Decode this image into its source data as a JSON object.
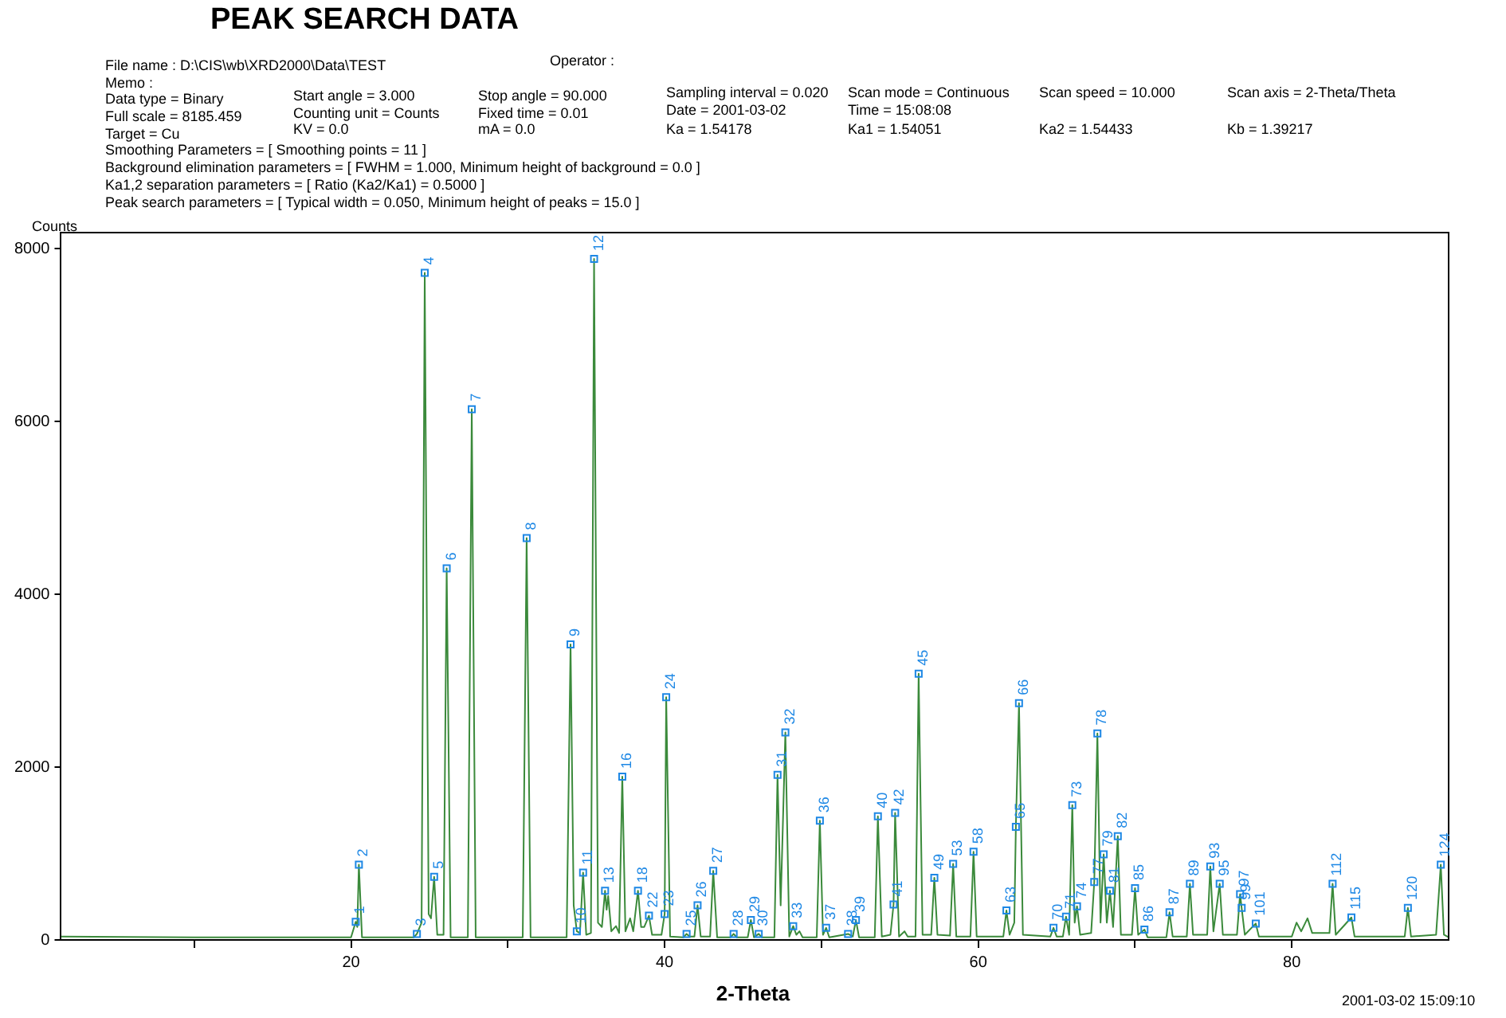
{
  "chart_data": {
    "type": "line",
    "title": "PEAK SEARCH DATA",
    "xlabel": "2-Theta",
    "ylabel": "Counts",
    "xlim": [
      1.5,
      90
    ],
    "xticks": [
      {
        "value": 10,
        "label": null
      },
      20,
      {
        "value": 30,
        "label": null
      },
      40,
      {
        "value": 50,
        "label": null
      },
      60,
      {
        "value": 70,
        "label": null
      },
      80
    ],
    "ylim": [
      0,
      8185
    ],
    "yticks": [
      0,
      2000,
      4000,
      6000,
      8000
    ],
    "grid": false,
    "legend": false,
    "marker": "none",
    "line_style": "solid",
    "series": [
      {
        "color": "#3b8a3b",
        "x": [
          1.5,
          10,
          20.0,
          20.3,
          20.4,
          20.5,
          20.7,
          24.0,
          24.2,
          24.5,
          24.7,
          24.95,
          25.1,
          25.3,
          25.5,
          25.9,
          26.1,
          26.35,
          27.45,
          27.7,
          27.95,
          30.95,
          31.2,
          31.45,
          33.75,
          34.0,
          34.2,
          34.4,
          34.6,
          34.8,
          35.0,
          35.3,
          35.5,
          35.75,
          36.0,
          36.2,
          36.3,
          36.4,
          36.6,
          36.9,
          37.1,
          37.3,
          37.5,
          37.8,
          38.0,
          38.3,
          38.5,
          38.7,
          39.0,
          39.2,
          39.8,
          40.0,
          40.1,
          40.35,
          41.2,
          41.4,
          41.6,
          41.9,
          42.1,
          42.3,
          42.9,
          43.1,
          43.35,
          44.2,
          44.4,
          44.6,
          45.3,
          45.5,
          45.7,
          46.0,
          46.2,
          47.0,
          47.2,
          47.4,
          47.7,
          47.95,
          48.2,
          48.4,
          48.6,
          48.8,
          49.7,
          49.9,
          50.1,
          50.3,
          50.5,
          51.7,
          52.0,
          52.2,
          52.4,
          53.4,
          53.6,
          53.85,
          54.4,
          54.6,
          54.7,
          54.95,
          55.3,
          55.5,
          56.0,
          56.2,
          56.45,
          57.0,
          57.2,
          57.4,
          58.2,
          58.4,
          58.6,
          59.5,
          59.7,
          59.9,
          61.6,
          61.8,
          62.0,
          62.3,
          62.4,
          62.6,
          62.85,
          64.6,
          64.8,
          65.0,
          65.4,
          65.6,
          65.8,
          66.0,
          66.15,
          66.3,
          66.5,
          67.2,
          67.4,
          67.6,
          67.8,
          68.0,
          68.2,
          68.4,
          68.6,
          68.9,
          69.1,
          69.8,
          70.0,
          70.2,
          70.6,
          70.8,
          72.0,
          72.2,
          72.4,
          73.3,
          73.5,
          73.7,
          74.6,
          74.8,
          75.0,
          75.4,
          75.6,
          76.5,
          76.7,
          76.8,
          77.0,
          77.7,
          77.9,
          80.0,
          80.3,
          80.6,
          81.0,
          81.3,
          82.4,
          82.6,
          82.8,
          83.8,
          84.0,
          87.2,
          87.4,
          87.6,
          89.2,
          89.5,
          89.7,
          90
        ],
        "values": [
          40,
          30,
          30,
          210,
          150,
          870,
          30,
          30,
          70,
          200,
          7720,
          300,
          250,
          730,
          60,
          60,
          4300,
          30,
          30,
          6140,
          30,
          30,
          4650,
          30,
          30,
          3420,
          400,
          100,
          80,
          780,
          60,
          80,
          7880,
          200,
          150,
          570,
          350,
          510,
          100,
          160,
          80,
          1890,
          100,
          250,
          100,
          570,
          150,
          150,
          280,
          60,
          60,
          300,
          2810,
          40,
          30,
          70,
          40,
          40,
          400,
          40,
          40,
          800,
          30,
          30,
          70,
          30,
          30,
          230,
          30,
          70,
          30,
          30,
          1910,
          400,
          2400,
          40,
          160,
          60,
          100,
          30,
          30,
          1380,
          60,
          140,
          30,
          70,
          40,
          230,
          30,
          30,
          1430,
          40,
          60,
          410,
          1470,
          40,
          100,
          40,
          40,
          3080,
          60,
          60,
          720,
          60,
          50,
          880,
          40,
          40,
          1020,
          40,
          40,
          340,
          60,
          200,
          1310,
          2740,
          60,
          40,
          140,
          40,
          40,
          270,
          60,
          1560,
          200,
          390,
          60,
          80,
          670,
          2390,
          200,
          990,
          200,
          570,
          150,
          1200,
          60,
          60,
          600,
          60,
          120,
          30,
          30,
          320,
          40,
          40,
          650,
          60,
          60,
          850,
          100,
          650,
          60,
          60,
          530,
          370,
          60,
          190,
          40,
          40,
          200,
          100,
          250,
          80,
          80,
          650,
          60,
          260,
          40,
          40,
          370,
          40,
          60,
          870,
          60,
          30
        ]
      }
    ],
    "annotations": [
      "File name : D:\\CIS\\wb\\XRD2000\\Data\\TEST",
      "Operator :",
      "Memo :",
      "Data type = Binary",
      "Start angle = 3.000",
      "Stop angle = 90.000",
      "Sampling interval = 0.020",
      "Scan mode = Continuous",
      "Scan speed = 10.000",
      "Scan axis = 2-Theta/Theta",
      "Full scale = 8185.459",
      "Counting unit = Counts",
      "Fixed time = 0.01",
      "Date = 2001-03-02",
      "Time = 15:08:08",
      "Target = Cu",
      "KV = 0.0",
      "mA = 0.0",
      "Ka = 1.54178",
      "Ka1 = 1.54051",
      "Ka2 = 1.54433",
      "Kb = 1.39217",
      "Smoothing Parameters = [ Smoothing points = 11 ]",
      "Background elimination parameters = [ FWHM = 1.000,  Minimum height of background = 0.0 ]",
      "Ka1,2 separation parameters = [ Ratio (Ka2/Ka1) = 0.5000 ]",
      "Peak search parameters = [ Typical width = 0.050,  Minimum height of peaks = 15.0 ]",
      "2001-03-02 15:09:10",
      {
        "text": "1",
        "x": 20.3,
        "y": 210
      },
      {
        "text": "2",
        "x": 20.5,
        "y": 870
      },
      {
        "text": "3",
        "x": 24.2,
        "y": 70
      },
      {
        "text": "4",
        "x": 24.7,
        "y": 7720
      },
      {
        "text": "5",
        "x": 25.3,
        "y": 730
      },
      {
        "text": "6",
        "x": 26.1,
        "y": 4300
      },
      {
        "text": "7",
        "x": 27.7,
        "y": 6140
      },
      {
        "text": "8",
        "x": 31.2,
        "y": 4650
      },
      {
        "text": "9",
        "x": 34.0,
        "y": 3420
      },
      {
        "text": "10",
        "x": 34.4,
        "y": 100
      },
      {
        "text": "11",
        "x": 34.8,
        "y": 780
      },
      {
        "text": "12",
        "x": 35.5,
        "y": 7880
      },
      {
        "text": "13",
        "x": 36.2,
        "y": 570
      },
      {
        "text": "16",
        "x": 37.3,
        "y": 1890
      },
      {
        "text": "18",
        "x": 38.3,
        "y": 570
      },
      {
        "text": "22",
        "x": 39.0,
        "y": 280
      },
      {
        "text": "23",
        "x": 40.0,
        "y": 300
      },
      {
        "text": "24",
        "x": 40.1,
        "y": 2810
      },
      {
        "text": "25",
        "x": 41.4,
        "y": 70
      },
      {
        "text": "26",
        "x": 42.1,
        "y": 400
      },
      {
        "text": "27",
        "x": 43.1,
        "y": 800
      },
      {
        "text": "28",
        "x": 44.4,
        "y": 70
      },
      {
        "text": "29",
        "x": 45.5,
        "y": 230
      },
      {
        "text": "30",
        "x": 46.0,
        "y": 70
      },
      {
        "text": "31",
        "x": 47.2,
        "y": 1910
      },
      {
        "text": "32",
        "x": 47.7,
        "y": 2400
      },
      {
        "text": "33",
        "x": 48.2,
        "y": 160
      },
      {
        "text": "36",
        "x": 49.9,
        "y": 1380
      },
      {
        "text": "37",
        "x": 50.3,
        "y": 140
      },
      {
        "text": "38",
        "x": 51.7,
        "y": 70
      },
      {
        "text": "39",
        "x": 52.2,
        "y": 230
      },
      {
        "text": "40",
        "x": 53.6,
        "y": 1430
      },
      {
        "text": "41",
        "x": 54.6,
        "y": 410
      },
      {
        "text": "42",
        "x": 54.7,
        "y": 1470
      },
      {
        "text": "45",
        "x": 56.2,
        "y": 3080
      },
      {
        "text": "49",
        "x": 57.2,
        "y": 720
      },
      {
        "text": "53",
        "x": 58.4,
        "y": 880
      },
      {
        "text": "58",
        "x": 59.7,
        "y": 1020
      },
      {
        "text": "63",
        "x": 61.8,
        "y": 340
      },
      {
        "text": "65",
        "x": 62.4,
        "y": 1310
      },
      {
        "text": "66",
        "x": 62.6,
        "y": 2740
      },
      {
        "text": "70",
        "x": 64.8,
        "y": 140
      },
      {
        "text": "71",
        "x": 65.6,
        "y": 270
      },
      {
        "text": "73",
        "x": 66.0,
        "y": 1560
      },
      {
        "text": "74",
        "x": 66.3,
        "y": 390
      },
      {
        "text": "77",
        "x": 67.4,
        "y": 670
      },
      {
        "text": "78",
        "x": 67.6,
        "y": 2390
      },
      {
        "text": "79",
        "x": 68.0,
        "y": 990
      },
      {
        "text": "81",
        "x": 68.4,
        "y": 570
      },
      {
        "text": "82",
        "x": 68.9,
        "y": 1200
      },
      {
        "text": "85",
        "x": 70.0,
        "y": 600
      },
      {
        "text": "86",
        "x": 70.6,
        "y": 120
      },
      {
        "text": "87",
        "x": 72.2,
        "y": 320
      },
      {
        "text": "89",
        "x": 73.5,
        "y": 650
      },
      {
        "text": "93",
        "x": 74.8,
        "y": 850
      },
      {
        "text": "95",
        "x": 75.4,
        "y": 650
      },
      {
        "text": "97",
        "x": 76.7,
        "y": 530
      },
      {
        "text": "99",
        "x": 76.8,
        "y": 370
      },
      {
        "text": "101",
        "x": 77.7,
        "y": 190
      },
      {
        "text": "112",
        "x": 82.6,
        "y": 650
      },
      {
        "text": "115",
        "x": 83.8,
        "y": 260
      },
      {
        "text": "120",
        "x": 87.4,
        "y": 370
      },
      {
        "text": "124",
        "x": 89.5,
        "y": 870
      }
    ]
  }
}
